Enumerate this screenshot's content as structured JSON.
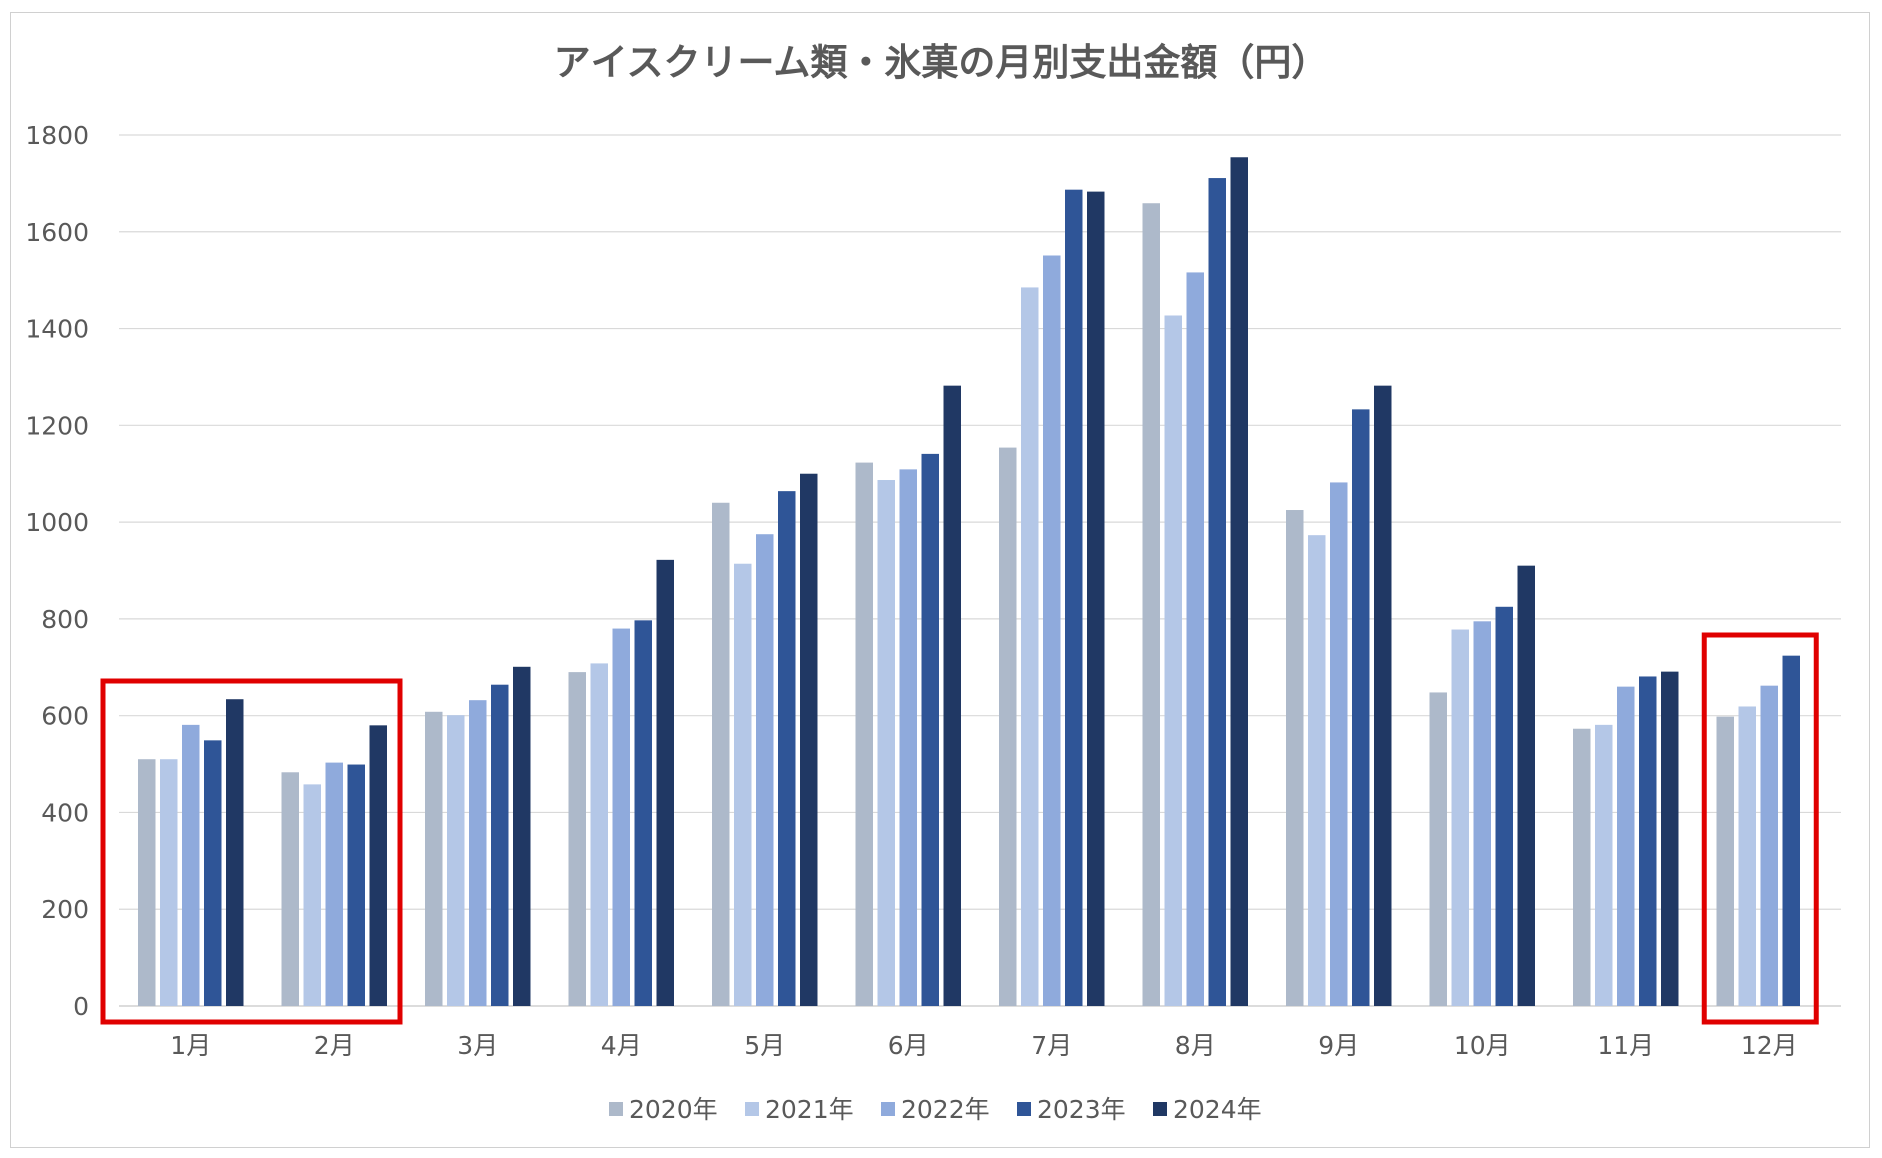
{
  "chart_data": {
    "type": "bar",
    "title": "アイスクリーム類・氷菓の月別支出金額（円）",
    "xlabel": "",
    "ylabel": "",
    "ylim": [
      0,
      1800
    ],
    "yticks": [
      0,
      200,
      400,
      600,
      800,
      1000,
      1200,
      1400,
      1600,
      1800
    ],
    "grid": true,
    "legend_position": "bottom",
    "categories": [
      "1月",
      "2月",
      "3月",
      "4月",
      "5月",
      "6月",
      "7月",
      "8月",
      "9月",
      "10月",
      "11月",
      "12月"
    ],
    "series": [
      {
        "name": "2020年",
        "color": "#adb9ca",
        "values": [
          510,
          483,
          608,
          690,
          1040,
          1123,
          1154,
          1659,
          1025,
          648,
          573,
          598
        ]
      },
      {
        "name": "2021年",
        "color": "#b4c7e7",
        "values": [
          510,
          458,
          601,
          708,
          914,
          1087,
          1485,
          1427,
          973,
          778,
          581,
          619
        ]
      },
      {
        "name": "2022年",
        "color": "#8faadc",
        "values": [
          581,
          503,
          632,
          780,
          975,
          1109,
          1551,
          1516,
          1082,
          795,
          660,
          662
        ]
      },
      {
        "name": "2023年",
        "color": "#2f5597",
        "values": [
          549,
          499,
          664,
          797,
          1064,
          1141,
          1687,
          1711,
          1233,
          825,
          681,
          724
        ]
      },
      {
        "name": "2024年",
        "color": "#203864",
        "values": [
          634,
          580,
          701,
          922,
          1100,
          1282,
          1683,
          1754,
          1282,
          910,
          691,
          null
        ]
      }
    ],
    "highlight_boxes": [
      {
        "label": "1月〜2月",
        "from_category": "1月",
        "to_category": "2月",
        "color": "#e00000"
      },
      {
        "label": "12月",
        "from_category": "12月",
        "to_category": "12月",
        "color": "#e00000"
      }
    ]
  }
}
